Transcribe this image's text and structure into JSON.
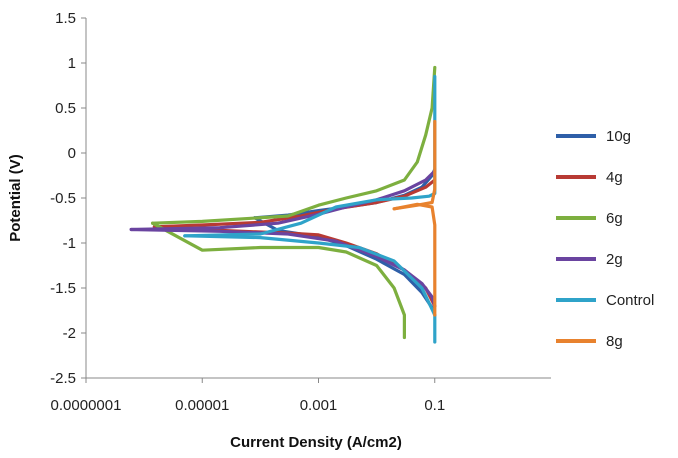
{
  "chart_data": {
    "type": "line",
    "xlabel": "Current Density (A/cm2)",
    "ylabel": "Potential (V)",
    "x_scale": "log",
    "xlim": [
      1e-07,
      10
    ],
    "ylim": [
      -2.5,
      1.5
    ],
    "x_ticks": [
      1e-07,
      1e-05,
      0.001,
      0.1
    ],
    "x_tick_labels": [
      "0.0000001",
      "0.00001",
      "0.001",
      "0.1"
    ],
    "y_ticks": [
      1.5,
      1,
      0.5,
      0,
      -0.5,
      -1,
      -1.5,
      -2,
      -2.5
    ],
    "y_tick_labels": [
      "1.5",
      "1",
      "0.5",
      "0",
      "-0.5",
      "-1",
      "-1.5",
      "-2",
      "-2.5"
    ],
    "legend_position": "right",
    "series": [
      {
        "name": "10g",
        "color": "#2E5FA8",
        "anodic": [
          [
            8e-05,
            -0.72
          ],
          [
            0.0003,
            -0.69
          ],
          [
            0.001,
            -0.64
          ],
          [
            0.003,
            -0.6
          ],
          [
            0.01,
            -0.55
          ],
          [
            0.03,
            -0.47
          ],
          [
            0.06,
            -0.38
          ],
          [
            0.09,
            -0.25
          ],
          [
            0.1,
            -0.18
          ]
        ],
        "cathodic": [
          [
            8e-05,
            -0.72
          ],
          [
            0.0002,
            -0.86
          ],
          [
            0.001,
            -0.93
          ],
          [
            0.003,
            -1.03
          ],
          [
            0.01,
            -1.18
          ],
          [
            0.03,
            -1.35
          ],
          [
            0.06,
            -1.55
          ],
          [
            0.09,
            -1.72
          ],
          [
            0.1,
            -1.8
          ]
        ]
      },
      {
        "name": "4g",
        "color": "#B83A34",
        "anodic": [
          [
            1.5e-06,
            -0.82
          ],
          [
            1e-05,
            -0.8
          ],
          [
            0.0001,
            -0.77
          ],
          [
            0.0005,
            -0.7
          ],
          [
            0.002,
            -0.62
          ],
          [
            0.01,
            -0.55
          ],
          [
            0.03,
            -0.48
          ],
          [
            0.07,
            -0.38
          ],
          [
            0.1,
            -0.3
          ]
        ],
        "cathodic": [
          [
            1.5e-06,
            -0.82
          ],
          [
            2e-05,
            -0.86
          ],
          [
            0.0003,
            -0.89
          ],
          [
            0.001,
            -0.91
          ],
          [
            0.003,
            -1.0
          ],
          [
            0.01,
            -1.12
          ],
          [
            0.03,
            -1.3
          ],
          [
            0.07,
            -1.5
          ],
          [
            0.1,
            -1.7
          ]
        ]
      },
      {
        "name": "6g",
        "color": "#7DAF3F",
        "anodic": [
          [
            1.4e-06,
            -0.78
          ],
          [
            1e-05,
            -0.76
          ],
          [
            0.0003,
            -0.7
          ],
          [
            0.001,
            -0.58
          ],
          [
            0.003,
            -0.5
          ],
          [
            0.01,
            -0.42
          ],
          [
            0.03,
            -0.3
          ],
          [
            0.05,
            -0.1
          ],
          [
            0.07,
            0.2
          ],
          [
            0.09,
            0.5
          ],
          [
            0.1,
            0.95
          ]
        ],
        "cathodic": [
          [
            1.4e-06,
            -0.78
          ],
          [
            1e-05,
            -1.08
          ],
          [
            0.0001,
            -1.05
          ],
          [
            0.001,
            -1.05
          ],
          [
            0.003,
            -1.1
          ],
          [
            0.01,
            -1.25
          ],
          [
            0.02,
            -1.5
          ],
          [
            0.03,
            -1.8
          ],
          [
            0.03,
            -2.05
          ]
        ]
      },
      {
        "name": "2g",
        "color": "#6A44A0",
        "anodic": [
          [
            6e-07,
            -0.85
          ],
          [
            2e-05,
            -0.83
          ],
          [
            0.0002,
            -0.78
          ],
          [
            0.001,
            -0.68
          ],
          [
            0.003,
            -0.6
          ],
          [
            0.01,
            -0.52
          ],
          [
            0.03,
            -0.42
          ],
          [
            0.07,
            -0.3
          ],
          [
            0.1,
            -0.2
          ]
        ],
        "cathodic": [
          [
            6e-07,
            -0.85
          ],
          [
            2e-05,
            -0.87
          ],
          [
            0.0003,
            -0.9
          ],
          [
            0.002,
            -0.98
          ],
          [
            0.01,
            -1.15
          ],
          [
            0.03,
            -1.3
          ],
          [
            0.06,
            -1.45
          ],
          [
            0.09,
            -1.6
          ],
          [
            0.1,
            -1.7
          ]
        ]
      },
      {
        "name": "Control",
        "color": "#2FA3C9",
        "anodic": [
          [
            5e-06,
            -0.92
          ],
          [
            0.0001,
            -0.9
          ],
          [
            0.0005,
            -0.78
          ],
          [
            0.002,
            -0.6
          ],
          [
            0.01,
            -0.52
          ],
          [
            0.04,
            -0.5
          ],
          [
            0.08,
            -0.48
          ],
          [
            0.1,
            -0.45
          ],
          [
            0.1,
            0.85
          ]
        ],
        "cathodic": [
          [
            5e-06,
            -0.92
          ],
          [
            0.0001,
            -0.94
          ],
          [
            0.001,
            -1.0
          ],
          [
            0.005,
            -1.05
          ],
          [
            0.02,
            -1.2
          ],
          [
            0.06,
            -1.5
          ],
          [
            0.1,
            -1.8
          ],
          [
            0.1,
            -2.1
          ]
        ]
      },
      {
        "name": "8g",
        "color": "#E8822E",
        "anodic": [
          [
            0.02,
            -0.62
          ],
          [
            0.05,
            -0.58
          ],
          [
            0.09,
            -0.55
          ],
          [
            0.1,
            -0.4
          ],
          [
            0.1,
            0.35
          ]
        ],
        "cathodic": [
          [
            0.02,
            -0.62
          ],
          [
            0.05,
            -0.57
          ],
          [
            0.09,
            -0.6
          ],
          [
            0.1,
            -0.8
          ],
          [
            0.1,
            -1.8
          ]
        ]
      }
    ]
  }
}
